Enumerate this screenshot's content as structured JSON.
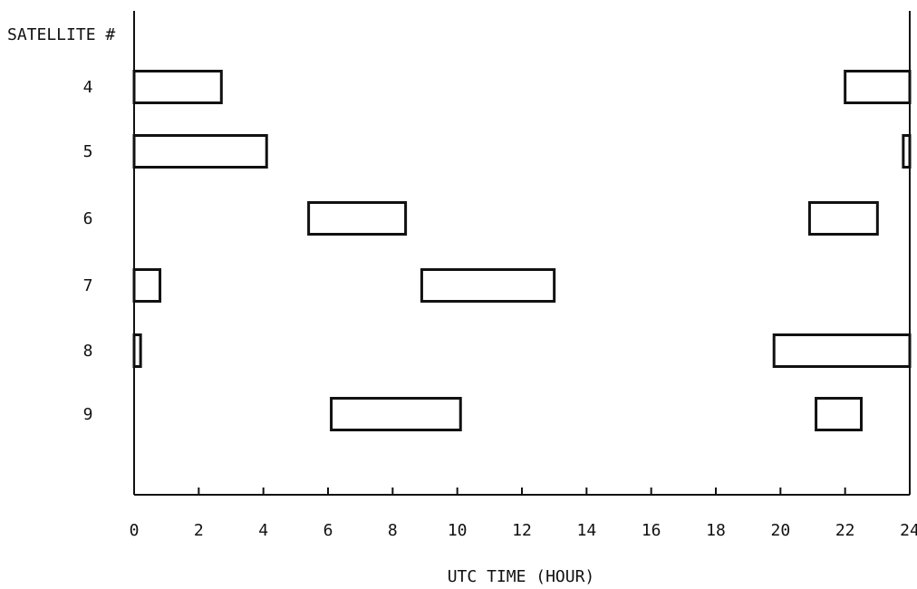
{
  "chart_data": {
    "type": "gantt",
    "title": "",
    "xlabel": "UTC TIME (HOUR)",
    "ylabel": "SATELLITE #",
    "xlim": [
      0,
      24
    ],
    "xticks": [
      0,
      2,
      4,
      6,
      8,
      10,
      12,
      14,
      16,
      18,
      20,
      22,
      24
    ],
    "categories": [
      "4",
      "5",
      "6",
      "7",
      "8",
      "9"
    ],
    "grid": false,
    "series": [
      {
        "intervals": [
          {
            "satellite": "4",
            "start": 0.0,
            "end": 2.7
          },
          {
            "satellite": "4",
            "start": 22.0,
            "end": 24.0
          },
          {
            "satellite": "5",
            "start": 0.0,
            "end": 4.1
          },
          {
            "satellite": "5",
            "start": 23.8,
            "end": 24.0
          },
          {
            "satellite": "6",
            "start": 5.4,
            "end": 8.4
          },
          {
            "satellite": "6",
            "start": 20.9,
            "end": 23.0
          },
          {
            "satellite": "7",
            "start": 0.0,
            "end": 0.8
          },
          {
            "satellite": "7",
            "start": 8.9,
            "end": 13.0
          },
          {
            "satellite": "8",
            "start": 0.0,
            "end": 0.2
          },
          {
            "satellite": "8",
            "start": 19.8,
            "end": 24.0
          },
          {
            "satellite": "9",
            "start": 6.1,
            "end": 10.1
          },
          {
            "satellite": "9",
            "start": 21.1,
            "end": 22.5
          }
        ]
      }
    ]
  }
}
